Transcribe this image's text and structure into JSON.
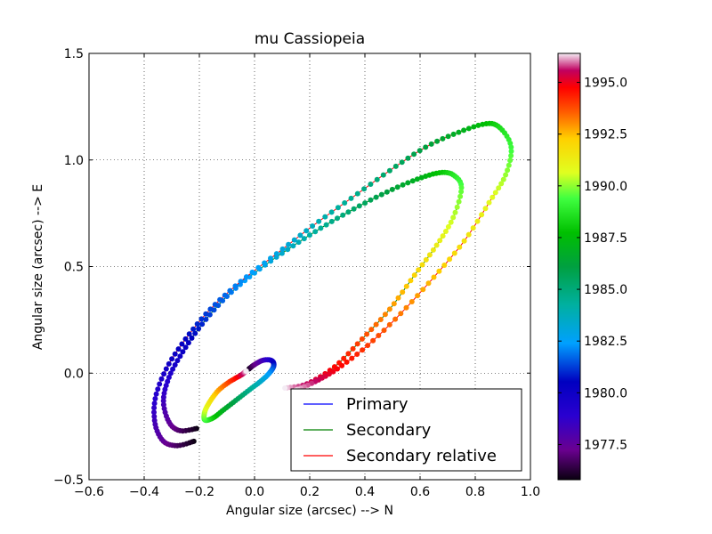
{
  "chart_data": {
    "type": "scatter",
    "title": "mu Cassiopeia",
    "xlabel": "Angular size (arcsec) --> N",
    "ylabel": "Angular size (arcsec) --> E",
    "xlim": [
      -0.6,
      1.0
    ],
    "ylim": [
      -0.5,
      1.5
    ],
    "xticks": [
      "−0.6",
      "−0.4",
      "−0.2",
      "0.0",
      "0.2",
      "0.4",
      "0.6",
      "0.8",
      "1.0"
    ],
    "yticks": [
      "−0.5",
      "0.0",
      "0.5",
      "1.0",
      "1.5"
    ],
    "grid": true,
    "legend": {
      "placement": "lower-right",
      "entries": [
        {
          "label": "Primary",
          "color": "#0000ff"
        },
        {
          "label": "Secondary",
          "color": "#008000"
        },
        {
          "label": "Secondary relative",
          "color": "#ff0000"
        }
      ]
    },
    "colorbar": {
      "ticks": [
        "1977.5",
        "1980.0",
        "1982.5",
        "1985.0",
        "1987.5",
        "1990.0",
        "1992.5",
        "1995.0"
      ],
      "min_year": 1975.8,
      "max_year": 1996.4
    },
    "series": [
      {
        "name": "Primary",
        "line_color": "#0000ff",
        "start_year": 1975.8,
        "end_year": 1996.4,
        "points": [
          [
            -0.02,
            0.02
          ],
          [
            0.0,
            0.04
          ],
          [
            0.03,
            0.06
          ],
          [
            0.06,
            0.06
          ],
          [
            0.07,
            0.04
          ],
          [
            0.06,
            0.01
          ],
          [
            0.03,
            -0.03
          ],
          [
            -0.01,
            -0.07
          ],
          [
            -0.06,
            -0.12
          ],
          [
            -0.11,
            -0.17
          ],
          [
            -0.15,
            -0.21
          ],
          [
            -0.18,
            -0.22
          ],
          [
            -0.18,
            -0.18
          ],
          [
            -0.16,
            -0.13
          ],
          [
            -0.13,
            -0.08
          ],
          [
            -0.09,
            -0.04
          ],
          [
            -0.05,
            -0.01
          ],
          [
            -0.03,
            0.01
          ]
        ]
      },
      {
        "name": "Secondary",
        "line_color": "#008000",
        "start_year": 1975.8,
        "end_year": 1996.4,
        "points": [
          [
            -0.21,
            -0.26
          ],
          [
            -0.27,
            -0.27
          ],
          [
            -0.31,
            -0.23
          ],
          [
            -0.33,
            -0.13
          ],
          [
            -0.31,
            -0.02
          ],
          [
            -0.26,
            0.1
          ],
          [
            -0.19,
            0.23
          ],
          [
            -0.1,
            0.36
          ],
          [
            0.0,
            0.47
          ],
          [
            0.12,
            0.58
          ],
          [
            0.24,
            0.68
          ],
          [
            0.36,
            0.77
          ],
          [
            0.48,
            0.85
          ],
          [
            0.59,
            0.91
          ],
          [
            0.67,
            0.94
          ],
          [
            0.72,
            0.93
          ],
          [
            0.75,
            0.87
          ],
          [
            0.72,
            0.73
          ],
          [
            0.66,
            0.6
          ],
          [
            0.58,
            0.46
          ],
          [
            0.49,
            0.3
          ],
          [
            0.39,
            0.16
          ],
          [
            0.29,
            0.03
          ],
          [
            0.19,
            -0.05
          ],
          [
            0.11,
            -0.07
          ]
        ]
      },
      {
        "name": "Secondary relative",
        "line_color": "#ff0000",
        "start_year": 1975.8,
        "end_year": 1996.4,
        "points": [
          [
            -0.22,
            -0.32
          ],
          [
            -0.28,
            -0.34
          ],
          [
            -0.33,
            -0.32
          ],
          [
            -0.36,
            -0.24
          ],
          [
            -0.36,
            -0.12
          ],
          [
            -0.32,
            0.02
          ],
          [
            -0.25,
            0.16
          ],
          [
            -0.16,
            0.3
          ],
          [
            -0.05,
            0.43
          ],
          [
            0.08,
            0.56
          ],
          [
            0.21,
            0.69
          ],
          [
            0.35,
            0.82
          ],
          [
            0.49,
            0.95
          ],
          [
            0.62,
            1.06
          ],
          [
            0.74,
            1.13
          ],
          [
            0.84,
            1.17
          ],
          [
            0.89,
            1.15
          ],
          [
            0.93,
            1.06
          ],
          [
            0.91,
            0.93
          ],
          [
            0.85,
            0.8
          ],
          [
            0.76,
            0.62
          ],
          [
            0.65,
            0.45
          ],
          [
            0.53,
            0.28
          ],
          [
            0.41,
            0.13
          ],
          [
            0.3,
            0.02
          ],
          [
            0.22,
            -0.04
          ],
          [
            0.15,
            -0.08
          ]
        ]
      }
    ]
  }
}
